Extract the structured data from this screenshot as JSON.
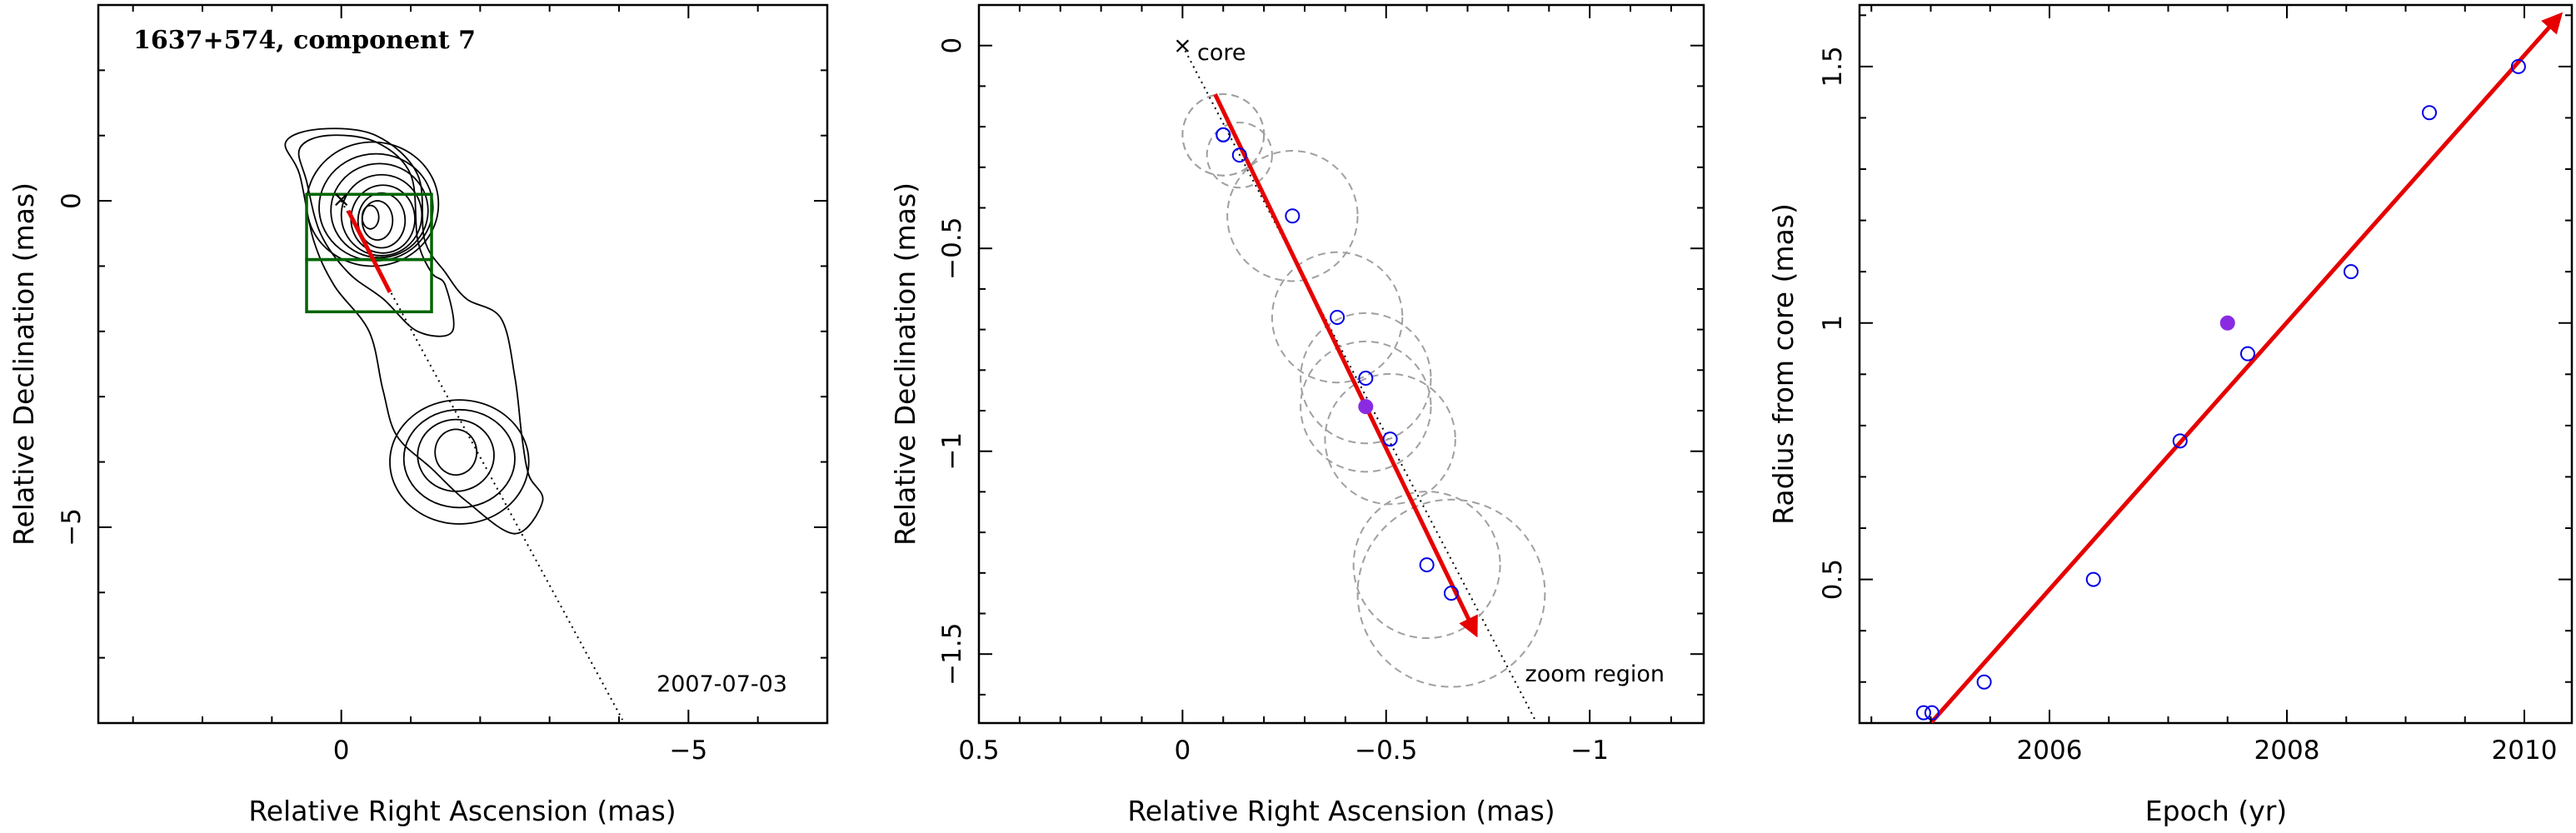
{
  "chart_data": [
    {
      "type": "scatter",
      "title": "1637+574, component 7",
      "xlabel": "Relative Right Ascension (mas)",
      "ylabel": "Relative Declination (mas)",
      "xlim": [
        3.5,
        -7
      ],
      "ylim": [
        -8,
        3
      ],
      "x_ticks": [
        0,
        -5
      ],
      "y_ticks": [
        0,
        -5
      ],
      "epoch_label": "2007-07-03",
      "core": {
        "x": 0,
        "y": 0
      },
      "jet_axis": {
        "from": [
          0,
          0
        ],
        "to": [
          -4.05,
          -7.95
        ]
      },
      "velocity_arrow": {
        "from": [
          -0.1,
          -0.15
        ],
        "to": [
          -0.7,
          -1.4
        ]
      },
      "zoom_boxes": [
        {
          "x": [
            0.5,
            -1.3
          ],
          "y": [
            0.1,
            -0.9
          ]
        },
        {
          "x": [
            0.5,
            -1.3
          ],
          "y": [
            -0.9,
            -1.7
          ]
        }
      ],
      "contours": "VLBI total-intensity contour map (core region plus extended jet knots)",
      "colors": {
        "arrow": "#e60000",
        "boxes": "#006400",
        "contours": "#000000"
      }
    },
    {
      "type": "scatter",
      "xlabel": "Relative Right Ascension (mas)",
      "ylabel": "Relative Declination (mas)",
      "xlim": [
        0.5,
        -1.28
      ],
      "ylim": [
        -1.67,
        0.1
      ],
      "x_ticks": [
        0.5,
        0,
        -0.5,
        -1
      ],
      "y_ticks": [
        0,
        -0.5,
        -1,
        -1.5
      ],
      "core_label": "core",
      "region_label": "zoom region",
      "points": [
        {
          "x": -0.1,
          "y": -0.22,
          "r": 0.1
        },
        {
          "x": -0.1,
          "y": -0.22,
          "r": 0.1
        },
        {
          "x": -0.14,
          "y": -0.27,
          "r": 0.08
        },
        {
          "x": -0.27,
          "y": -0.42,
          "r": 0.16
        },
        {
          "x": -0.38,
          "y": -0.67,
          "r": 0.16
        },
        {
          "x": -0.45,
          "y": -0.82,
          "r": 0.16
        },
        {
          "x": -0.51,
          "y": -0.97,
          "r": 0.16
        },
        {
          "x": -0.6,
          "y": -1.28,
          "r": 0.18
        },
        {
          "x": -0.66,
          "y": -1.35,
          "r": 0.23
        }
      ],
      "highlight_point": {
        "x": -0.45,
        "y": -0.89,
        "r": 0.16
      },
      "velocity_arrow": {
        "from": [
          -0.08,
          -0.12
        ],
        "to": [
          -0.72,
          -1.45
        ]
      },
      "jet_axis": {
        "from": [
          0,
          0
        ],
        "to": [
          -0.87,
          -1.67
        ]
      },
      "colors": {
        "points": "#0000e6",
        "highlight": "#8a2be2",
        "arrow": "#e60000",
        "circles": "#a0a0a0"
      }
    },
    {
      "type": "scatter",
      "xlabel": "Epoch (yr)",
      "ylabel": "Radius from core (mas)",
      "xlim": [
        2004.4,
        2010.4
      ],
      "ylim": [
        0.22,
        1.62
      ],
      "x_ticks": [
        2006,
        2008,
        2010
      ],
      "y_ticks": [
        0.5,
        1,
        1.5
      ],
      "points": [
        {
          "x": 2004.94,
          "y": 0.24
        },
        {
          "x": 2005.01,
          "y": 0.24
        },
        {
          "x": 2005.45,
          "y": 0.3
        },
        {
          "x": 2006.37,
          "y": 0.5
        },
        {
          "x": 2007.1,
          "y": 0.77
        },
        {
          "x": 2007.67,
          "y": 0.94
        },
        {
          "x": 2008.54,
          "y": 1.1
        },
        {
          "x": 2009.2,
          "y": 1.41
        },
        {
          "x": 2009.95,
          "y": 1.5
        }
      ],
      "highlight_point": {
        "x": 2007.5,
        "y": 1.0
      },
      "fit_line": {
        "from": [
          2005.0,
          0.22
        ],
        "to": [
          2010.3,
          1.6
        ]
      },
      "colors": {
        "points": "#0000e6",
        "highlight": "#8a2be2",
        "fit": "#e60000"
      }
    }
  ]
}
